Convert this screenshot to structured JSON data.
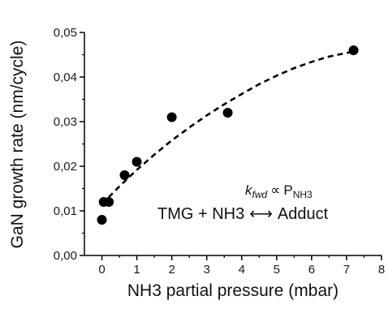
{
  "chart_data": {
    "type": "scatter",
    "title": "",
    "xlabel": "NH3 partial pressure (mbar)",
    "ylabel": "GaN growth rate (nm/cycle)",
    "xlim": [
      -0.5,
      8
    ],
    "ylim": [
      0,
      0.05
    ],
    "x_ticks": [
      "0",
      "1",
      "2",
      "3",
      "4",
      "5",
      "6",
      "7",
      "8"
    ],
    "y_ticks": [
      "0,00",
      "0,01",
      "0,02",
      "0,03",
      "0,04",
      "0,05"
    ],
    "grid": false,
    "series": [
      {
        "marker": "filled-circle",
        "color": "#000000",
        "points": [
          {
            "x": 0.0,
            "y": 0.008
          },
          {
            "x": 0.05,
            "y": 0.012
          },
          {
            "x": 0.2,
            "y": 0.012
          },
          {
            "x": 0.65,
            "y": 0.018
          },
          {
            "x": 1.0,
            "y": 0.021
          },
          {
            "x": 2.0,
            "y": 0.031
          },
          {
            "x": 3.6,
            "y": 0.032
          },
          {
            "x": 7.2,
            "y": 0.046
          }
        ]
      }
    ],
    "fit_curve": {
      "style": "dashed",
      "color": "#000000",
      "points": [
        {
          "x": 0.0,
          "y": 0.0115
        },
        {
          "x": 0.5,
          "y": 0.0155
        },
        {
          "x": 1.0,
          "y": 0.0192
        },
        {
          "x": 1.5,
          "y": 0.0226
        },
        {
          "x": 2.0,
          "y": 0.0258
        },
        {
          "x": 2.5,
          "y": 0.0287
        },
        {
          "x": 3.0,
          "y": 0.0314
        },
        {
          "x": 3.5,
          "y": 0.0339
        },
        {
          "x": 4.0,
          "y": 0.0362
        },
        {
          "x": 4.5,
          "y": 0.0384
        },
        {
          "x": 5.0,
          "y": 0.0403
        },
        {
          "x": 5.5,
          "y": 0.042
        },
        {
          "x": 6.0,
          "y": 0.0434
        },
        {
          "x": 6.5,
          "y": 0.0446
        },
        {
          "x": 7.0,
          "y": 0.0454
        },
        {
          "x": 7.2,
          "y": 0.0457
        }
      ]
    },
    "annotations": {
      "k_symbol": "k",
      "k_subscript": "fwd",
      "proportional": "∝",
      "pressure_symbol": "P",
      "pressure_subscript": "NH3",
      "reaction_left": "TMG + NH3",
      "reaction_arrow": "⟷",
      "reaction_right": "Adduct"
    }
  }
}
